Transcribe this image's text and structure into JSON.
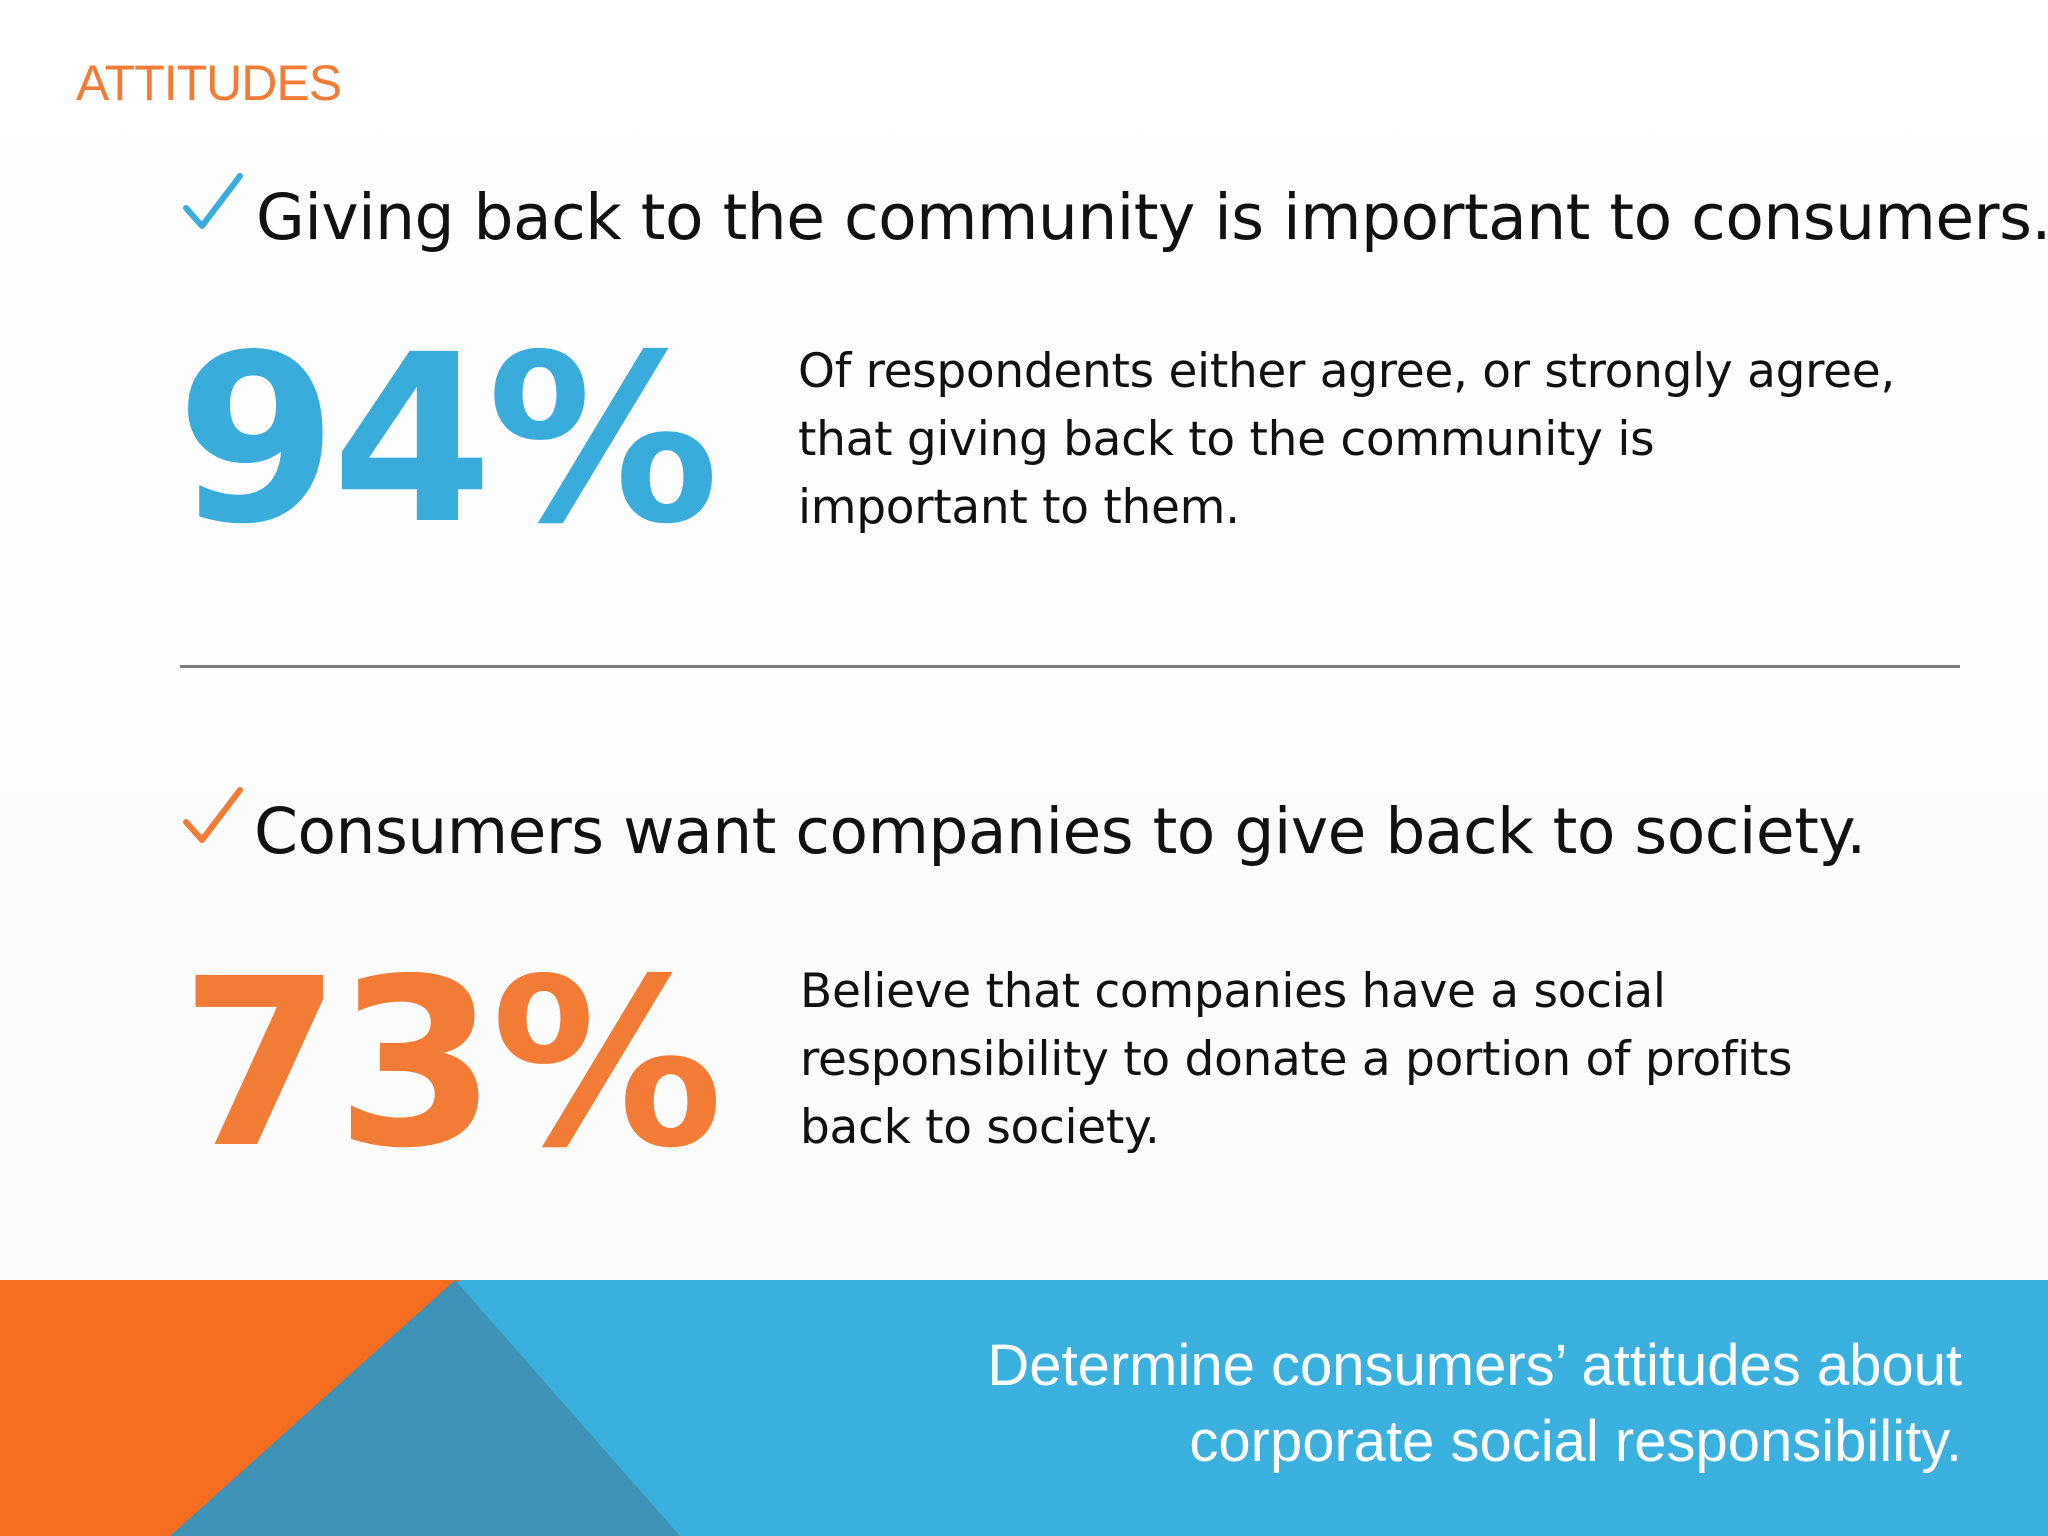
{
  "section_label": "ATTITUDES",
  "colors": {
    "accent_orange": "#f27b35",
    "accent_blue": "#3aacdb",
    "footer_blue": "#3ab0de",
    "footer_dark_blue": "#3d92b5",
    "footer_orange": "#f56d20"
  },
  "items": [
    {
      "check_icon": "check-icon",
      "check_color": "#3aacdb",
      "headline": "Giving back to the community is important to consumers.",
      "stat": "94%",
      "stat_color": "#3aacdb",
      "description": "Of respondents either agree, or strongly agree, that giving back to the community is important to them."
    },
    {
      "check_icon": "check-icon",
      "check_color": "#f27b35",
      "headline": "Consumers want companies to give back to society.",
      "stat": "73%",
      "stat_color": "#f27b35",
      "description": "Believe that companies have a social responsibility to donate a portion of profits back to society."
    }
  ],
  "footer": {
    "line1": "Determine consumers’ attitudes about",
    "line2": "corporate social responsibility."
  }
}
